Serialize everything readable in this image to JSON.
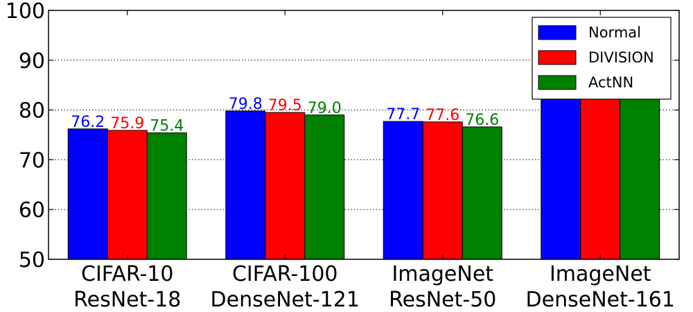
{
  "chart_data": {
    "type": "bar",
    "categories": [
      [
        "CIFAR-10",
        "ResNet-18"
      ],
      [
        "CIFAR-100",
        "DenseNet-121"
      ],
      [
        "ImageNet",
        "ResNet-50"
      ],
      [
        "ImageNet",
        "DenseNet-161"
      ]
    ],
    "series": [
      {
        "name": "Normal",
        "color": "#0000ff",
        "values": [
          76.2,
          79.8,
          77.7,
          96.0
        ],
        "labels": [
          "76.2",
          "79.8",
          "77.7",
          ""
        ]
      },
      {
        "name": "DIVISION",
        "color": "#ff0000",
        "values": [
          75.9,
          79.5,
          77.6,
          95.5
        ],
        "labels": [
          "75.9",
          "79.5",
          "77.6",
          ""
        ]
      },
      {
        "name": "ActNN",
        "color": "#008000",
        "values": [
          75.4,
          79.0,
          76.6,
          94.8
        ],
        "labels": [
          "75.4",
          "79.0",
          "76.6",
          ""
        ]
      }
    ],
    "ylim": [
      50,
      100
    ],
    "yticks": [
      50,
      60,
      70,
      80,
      90,
      100
    ],
    "grid": "horizontal dotted",
    "legend": "top-right",
    "title": "",
    "xlabel": "",
    "ylabel": ""
  }
}
